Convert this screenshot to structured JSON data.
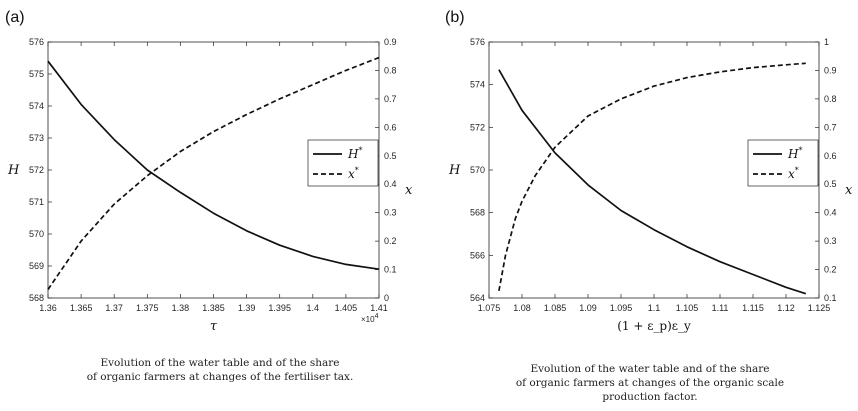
{
  "chart_data": [
    {
      "type": "line",
      "panel_label": "(a)",
      "xlabel": "τ",
      "ylabel_left": "H",
      "ylabel_right": "x",
      "x_ticks": [
        "1.36",
        "1.365",
        "1.37",
        "1.375",
        "1.38",
        "1.385",
        "1.39",
        "1.395",
        "1.4",
        "1.405",
        "1.41"
      ],
      "x_tick_values": [
        13600,
        13650,
        13700,
        13750,
        13800,
        13850,
        13900,
        13950,
        14000,
        14050,
        14100
      ],
      "x_multiplier": "×10",
      "x_multiplier_exp": "4",
      "xlim": [
        13600,
        14100
      ],
      "ylim_left": [
        568,
        576
      ],
      "ylim_right": [
        0,
        0.9
      ],
      "y_ticks_left": [
        "568",
        "569",
        "570",
        "571",
        "572",
        "573",
        "574",
        "575",
        "576"
      ],
      "y_ticks_right": [
        "0",
        "0.1",
        "0.2",
        "0.3",
        "0.4",
        "0.5",
        "0.6",
        "0.7",
        "0.8",
        "0.9"
      ],
      "legend": [
        "H*",
        "x*"
      ],
      "legend_position": "right",
      "series": [
        {
          "name": "H*",
          "axis": "left",
          "style": "solid",
          "x": [
            13600,
            13650,
            13700,
            13750,
            13800,
            13850,
            13900,
            13950,
            14000,
            14050,
            14100
          ],
          "values": [
            575.4,
            574.05,
            572.95,
            572.0,
            571.3,
            570.65,
            570.1,
            569.65,
            569.3,
            569.05,
            568.9
          ]
        },
        {
          "name": "x*",
          "axis": "right",
          "style": "dashed",
          "x": [
            13600,
            13650,
            13700,
            13750,
            13800,
            13850,
            13900,
            13950,
            14000,
            14050,
            14100
          ],
          "values": [
            0.03,
            0.2,
            0.33,
            0.43,
            0.515,
            0.585,
            0.645,
            0.7,
            0.75,
            0.8,
            0.845
          ]
        }
      ]
    },
    {
      "type": "line",
      "panel_label": "(b)",
      "xlabel": "(1 + ε_p)ε_y",
      "ylabel_left": "H",
      "ylabel_right": "x",
      "x_ticks": [
        "1.075",
        "1.08",
        "1.085",
        "1.09",
        "1.095",
        "1.1",
        "1.105",
        "1.11",
        "1.115",
        "1.12",
        "1.125"
      ],
      "x_tick_values": [
        1.075,
        1.08,
        1.085,
        1.09,
        1.095,
        1.1,
        1.105,
        1.11,
        1.115,
        1.12,
        1.125
      ],
      "xlim": [
        1.075,
        1.125
      ],
      "ylim_left": [
        564,
        576
      ],
      "ylim_right": [
        0.1,
        1
      ],
      "y_ticks_left": [
        "564",
        "566",
        "568",
        "570",
        "572",
        "574",
        "576"
      ],
      "y_ticks_right": [
        "0.1",
        "0.2",
        "0.3",
        "0.4",
        "0.5",
        "0.6",
        "0.7",
        "0.8",
        "0.9",
        "1"
      ],
      "legend": [
        "H*",
        "x*"
      ],
      "legend_position": "right",
      "series": [
        {
          "name": "H*",
          "axis": "left",
          "style": "solid",
          "x": [
            1.0765,
            1.08,
            1.085,
            1.09,
            1.095,
            1.1,
            1.105,
            1.11,
            1.115,
            1.12,
            1.123
          ],
          "values": [
            574.7,
            572.8,
            570.8,
            569.3,
            568.1,
            567.2,
            566.4,
            565.7,
            565.1,
            564.5,
            564.2
          ]
        },
        {
          "name": "x*",
          "axis": "right",
          "style": "dashed",
          "x": [
            1.0765,
            1.0775,
            1.079,
            1.08,
            1.082,
            1.085,
            1.09,
            1.095,
            1.1,
            1.105,
            1.11,
            1.115,
            1.12,
            1.123
          ],
          "values": [
            0.125,
            0.25,
            0.38,
            0.44,
            0.53,
            0.63,
            0.74,
            0.8,
            0.845,
            0.875,
            0.895,
            0.91,
            0.92,
            0.925
          ]
        }
      ]
    }
  ],
  "captions": [
    {
      "line1": "Evolution of the water table and of the share",
      "line2": "of organic farmers at changes of the fertiliser tax."
    },
    {
      "line1": "Evolution of the water table and of the share",
      "line2": "of organic farmers at changes of the organic scale",
      "line3": "production factor."
    }
  ]
}
